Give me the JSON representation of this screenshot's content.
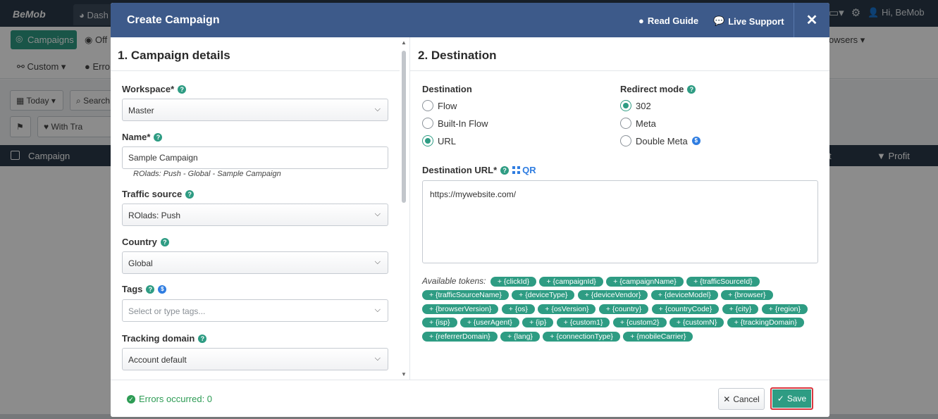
{
  "app": {
    "logo": "BeMob",
    "tab_label": "Dash",
    "user_label": "Hi, BeMob",
    "nav": {
      "campaigns": "Campaigns",
      "offers_partial": "Off",
      "custom": "Custom",
      "errors_partial": "Erro",
      "browsers_partial": "owsers"
    },
    "filters": {
      "date": "Today",
      "search_partial": "Search",
      "with_traffic_partial": "With Tra"
    },
    "table": {
      "campaign_header": "Campaign",
      "t_partial": "t",
      "profit_header": "Profit"
    }
  },
  "modal": {
    "title": "Create Campaign",
    "read_guide": "Read Guide",
    "live_support": "Live Support",
    "close_symbol": "✕",
    "left": {
      "section_title": "1. Campaign details",
      "workspace_label": "Workspace*",
      "workspace_value": "Master",
      "name_label": "Name*",
      "name_value": "Sample Campaign",
      "name_hint": "ROlads: Push - Global - Sample Campaign",
      "traffic_label": "Traffic source",
      "traffic_value": "ROlads: Push",
      "country_label": "Country",
      "country_value": "Global",
      "tags_label": "Tags",
      "tags_placeholder": "Select or type tags...",
      "tracking_label": "Tracking domain",
      "tracking_value": "Account default"
    },
    "right": {
      "section_title": "2. Destination",
      "destination_label": "Destination",
      "destination_options": [
        "Flow",
        "Built-In Flow",
        "URL"
      ],
      "destination_selected": "URL",
      "redirect_label": "Redirect mode",
      "redirect_options": [
        "302",
        "Meta",
        "Double Meta"
      ],
      "redirect_selected": "302",
      "url_label": "Destination URL*",
      "qr_label": "QR",
      "url_value": "https://mywebsite.com/",
      "tokens_label": "Available tokens:",
      "tokens": [
        "+ {clickId}",
        "+ {campaignId}",
        "+ {campaignName}",
        "+ {trafficSourceId}",
        "+ {trafficSourceName}",
        "+ {deviceType}",
        "+ {deviceVendor}",
        "+ {deviceModel}",
        "+ {browser}",
        "+ {browserVersion}",
        "+ {os}",
        "+ {osVersion}",
        "+ {country}",
        "+ {countryCode}",
        "+ {city}",
        "+ {region}",
        "+ {isp}",
        "+ {userAgent}",
        "+ {ip}",
        "+ {custom1}",
        "+ {custom2}",
        "+ {customN}",
        "+ {trackingDomain}",
        "+ {referrerDomain}",
        "+ {lang}",
        "+ {connectionType}",
        "+ {mobileCarrier}"
      ]
    },
    "footer": {
      "errors_text": "Errors occurred: 0",
      "cancel": "Cancel",
      "save": "Save"
    }
  },
  "colors": {
    "header_blue": "#3d5a8a",
    "accent_green": "#2e9c83",
    "save_border": "#d9363e",
    "topbar_dark": "#2b3a4a"
  }
}
